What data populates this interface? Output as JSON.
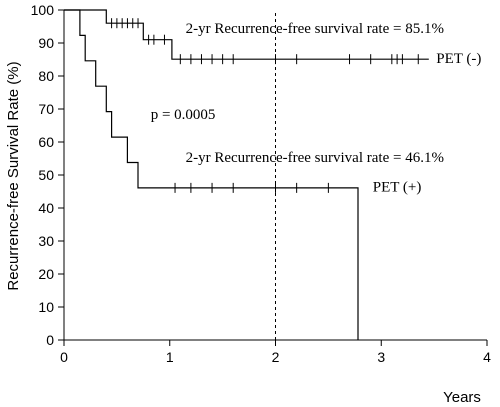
{
  "chart_data": {
    "type": "line",
    "xlabel": "Years",
    "ylabel": "Recurrence-free Survival Rate (%)",
    "xlim": [
      0,
      4
    ],
    "ylim": [
      0,
      100
    ],
    "x_ticks": [
      0,
      1,
      2,
      3,
      4
    ],
    "y_ticks": [
      0,
      10,
      20,
      30,
      40,
      50,
      60,
      70,
      80,
      90,
      100
    ],
    "x_tick_labels": [
      "0",
      "1",
      "2",
      "3",
      "4"
    ],
    "y_tick_labels": [
      "0",
      "10",
      "20",
      "30",
      "40",
      "50",
      "60",
      "70",
      "80",
      "90",
      "100"
    ],
    "reference_line_x": 2,
    "series": [
      {
        "name": "PET (-)",
        "step_points": [
          [
            0,
            100
          ],
          [
            0.4,
            100
          ],
          [
            0.4,
            96
          ],
          [
            0.75,
            96
          ],
          [
            0.75,
            91
          ],
          [
            1.02,
            91
          ],
          [
            1.02,
            85.1
          ],
          [
            3.45,
            85.1
          ]
        ],
        "censor_x": [
          0.45,
          0.5,
          0.55,
          0.6,
          0.65,
          0.7,
          0.8,
          0.85,
          0.95,
          1.1,
          1.2,
          1.3,
          1.4,
          1.5,
          1.6,
          2.0,
          2.2,
          2.7,
          2.9,
          3.1,
          3.15,
          3.2,
          3.35
        ]
      },
      {
        "name": "PET (+)",
        "step_points": [
          [
            0,
            100
          ],
          [
            0.15,
            100
          ],
          [
            0.15,
            92.3
          ],
          [
            0.2,
            92.3
          ],
          [
            0.2,
            84.6
          ],
          [
            0.3,
            84.6
          ],
          [
            0.3,
            76.9
          ],
          [
            0.4,
            76.9
          ],
          [
            0.4,
            69.2
          ],
          [
            0.45,
            69.2
          ],
          [
            0.45,
            61.5
          ],
          [
            0.6,
            61.5
          ],
          [
            0.6,
            53.8
          ],
          [
            0.7,
            53.8
          ],
          [
            0.7,
            46.1
          ],
          [
            2.78,
            46.1
          ],
          [
            2.78,
            0
          ]
        ],
        "censor_x": [
          1.05,
          1.2,
          1.4,
          1.6,
          2.0,
          2.2,
          2.5
        ]
      }
    ],
    "annotations": [
      {
        "text": "2-yr Recurrence-free survival rate = 85.1%",
        "x": 1.15,
        "y": 93
      },
      {
        "text": "PET (-)",
        "x": 3.52,
        "y": 84
      },
      {
        "text": "p = 0.0005",
        "x": 0.82,
        "y": 67
      },
      {
        "text": "2-yr Recurrence-free survival rate = 46.1%",
        "x": 1.15,
        "y": 54
      },
      {
        "text": "PET (+)",
        "x": 2.92,
        "y": 45
      }
    ]
  }
}
